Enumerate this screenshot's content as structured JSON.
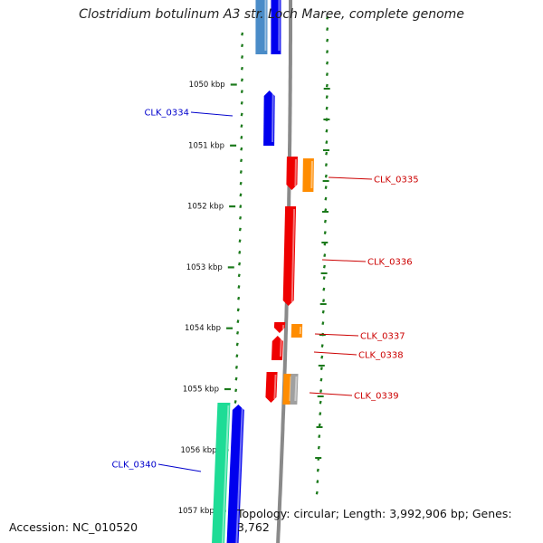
{
  "title": "Clostridium botulinum A3 str. Loch Maree, complete genome",
  "footer": {
    "accession": "Accession: NC_010520",
    "stats": "Topology: circular; Length: 3,992,906 bp; Genes: 3,762"
  },
  "scale": {
    "unit": "kbp",
    "ticks": [
      {
        "label": "1050 kbp",
        "value": 1050
      },
      {
        "label": "1051 kbp",
        "value": 1051
      },
      {
        "label": "1052 kbp",
        "value": 1052
      },
      {
        "label": "1053 kbp",
        "value": 1053
      },
      {
        "label": "1054 kbp",
        "value": 1054
      },
      {
        "label": "1055 kbp",
        "value": 1055
      },
      {
        "label": "1056 kbp",
        "value": 1056
      },
      {
        "label": "1057 kbp",
        "value": 1057
      }
    ]
  },
  "colors": {
    "backbone": "#8a8a8a",
    "tick": "#1c7a1c",
    "forward_gene": "#0000ee",
    "reverse_gene": "#ee0000",
    "orange_gene": "#ff8c00",
    "steelblue_gene": "#4a8cc8",
    "teal_gene": "#1edc96",
    "gray_gene": "#a0a0a0",
    "label_blue": "#0000cc",
    "label_red": "#cc0000"
  },
  "gene_labels": [
    {
      "name": "CLK_0334",
      "strand": "forward"
    },
    {
      "name": "CLK_0335",
      "strand": "reverse"
    },
    {
      "name": "CLK_0336",
      "strand": "reverse"
    },
    {
      "name": "CLK_0337",
      "strand": "reverse"
    },
    {
      "name": "CLK_0338",
      "strand": "reverse"
    },
    {
      "name": "CLK_0339",
      "strand": "reverse"
    },
    {
      "name": "CLK_0340",
      "strand": "forward"
    }
  ]
}
